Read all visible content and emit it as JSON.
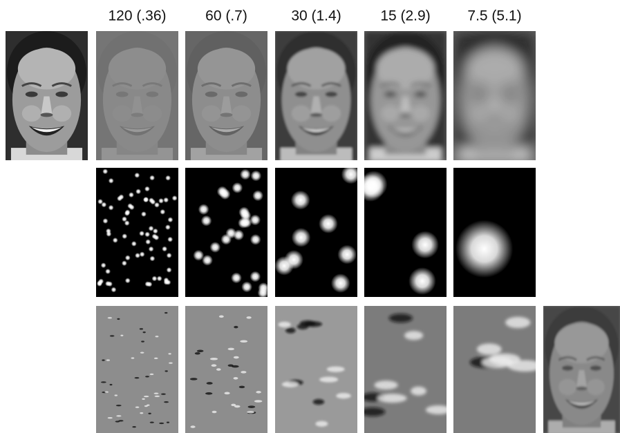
{
  "column_headers": [
    "120 (.36)",
    "60 (.7)",
    "30 (1.4)",
    "15 (2.9)",
    "7.5 (5.1)"
  ]
}
